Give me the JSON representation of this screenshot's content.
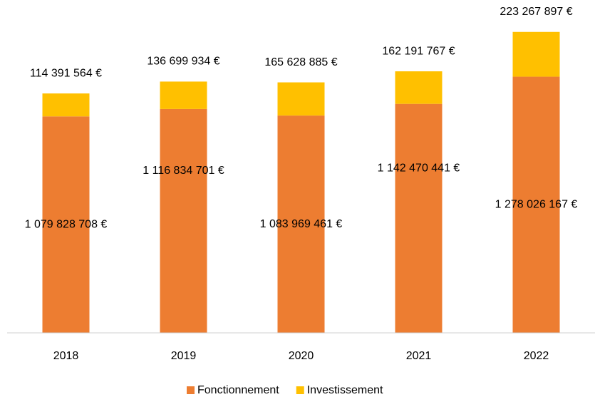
{
  "chart_data": {
    "type": "stacked_bar",
    "categories": [
      "2018",
      "2019",
      "2020",
      "2021",
      "2022"
    ],
    "series": [
      {
        "name": "Fonctionnement",
        "color": "#ed7d31",
        "values": [
          1079828708,
          1116834701,
          1083969461,
          1142470441,
          1278026167
        ],
        "value_labels": [
          "1 079 828 708 €",
          "1 116 834 701 €",
          "1 083 969 461 €",
          "1 142 470 441 €",
          "1 278 026 167 €"
        ]
      },
      {
        "name": "Investissement",
        "color": "#ffc000",
        "values": [
          114391564,
          136699934,
          165628885,
          162191767,
          223267897
        ],
        "value_labels": [
          "114 391 564 €",
          "136 699 934 €",
          "165 628 885 €",
          "162 191 767 €",
          "223 267 897 €"
        ]
      }
    ],
    "ylim": [
      0,
      1600000000
    ],
    "legend": "bottom"
  }
}
